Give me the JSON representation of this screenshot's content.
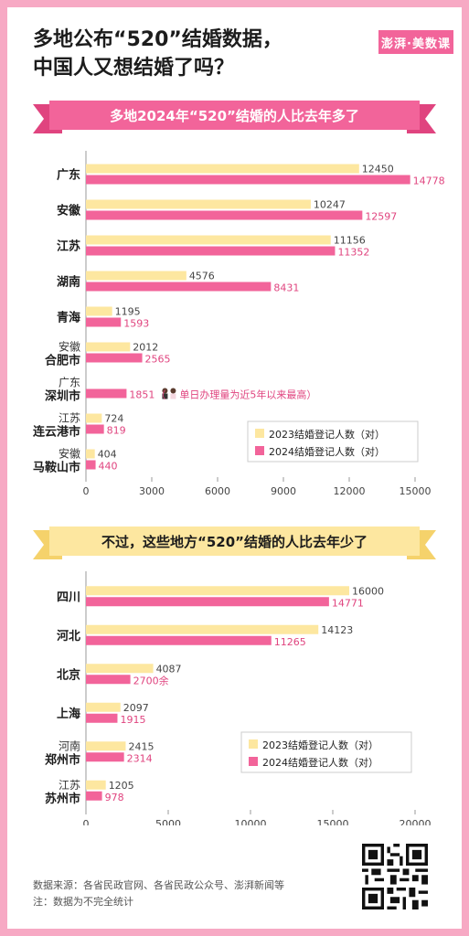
{
  "headline": [
    "多地公布“520”结婚数据，",
    "中国人又想结婚了吗？"
  ],
  "logo": "澎湃·美数课",
  "colors": {
    "y2023": "#fde7a0",
    "y2024": "#f2649a",
    "banner1": "#f2649a",
    "banner2": "#fde7a0",
    "frame": "#f7a9c4"
  },
  "chart_data": [
    {
      "type": "bar",
      "orientation": "horizontal",
      "title": "多地2024年“520”结婚的人比去年多了",
      "categories": [
        [
          "广东"
        ],
        [
          "安徽"
        ],
        [
          "江苏"
        ],
        [
          "湖南"
        ],
        [
          "青海"
        ],
        [
          "安徽",
          "合肥市"
        ],
        [
          "广东",
          "深圳市"
        ],
        [
          "江苏",
          "连云港市"
        ],
        [
          "安徽",
          "马鞍山市"
        ]
      ],
      "series": [
        {
          "name": "2023结婚登记人数（对）",
          "values": [
            12450,
            10247,
            11156,
            4576,
            1195,
            2012,
            null,
            724,
            404
          ],
          "labels": [
            "12450",
            "10247",
            "11156",
            "4576",
            "1195",
            "2012",
            "",
            "724",
            "404"
          ]
        },
        {
          "name": "2024结婚登记人数（对）",
          "values": [
            14778,
            12597,
            11352,
            8431,
            1593,
            2565,
            1851,
            819,
            440
          ],
          "labels": [
            "14778",
            "12597",
            "11352",
            "8431",
            "1593",
            "2565",
            "1851",
            "819",
            "440"
          ]
        }
      ],
      "annotation": "单日办理量为近5年以来最高",
      "annotation_category": 6,
      "xlim": [
        0,
        15000
      ],
      "xticks": [
        "0",
        "3000",
        "6000",
        "9000",
        "12000",
        "15000"
      ],
      "legend": "bottom-right"
    },
    {
      "type": "bar",
      "orientation": "horizontal",
      "title": "不过，这些地方“520”结婚的人比去年少了",
      "categories": [
        [
          "四川"
        ],
        [
          "河北"
        ],
        [
          "北京"
        ],
        [
          "上海"
        ],
        [
          "河南",
          "郑州市"
        ],
        [
          "江苏",
          "苏州市"
        ]
      ],
      "series": [
        {
          "name": "2023结婚登记人数（对）",
          "values": [
            16000,
            14123,
            4087,
            2097,
            2415,
            1205
          ],
          "labels": [
            "16000",
            "14123",
            "4087",
            "2097",
            "2415",
            "1205"
          ]
        },
        {
          "name": "2024结婚登记人数（对）",
          "values": [
            14771,
            11265,
            2700,
            1915,
            2314,
            978
          ],
          "labels": [
            "14771",
            "11265",
            "2700余",
            "1915",
            "2314",
            "978"
          ]
        }
      ],
      "xlim": [
        0,
        20000
      ],
      "xticks": [
        "0",
        "5000",
        "10000",
        "15000",
        "20000"
      ],
      "legend": "bottom-right"
    }
  ],
  "footer": {
    "source": "数据来源：各省民政官网、各省民政公众号、澎湃新闻等",
    "note": "注：数据为不完全统计"
  }
}
